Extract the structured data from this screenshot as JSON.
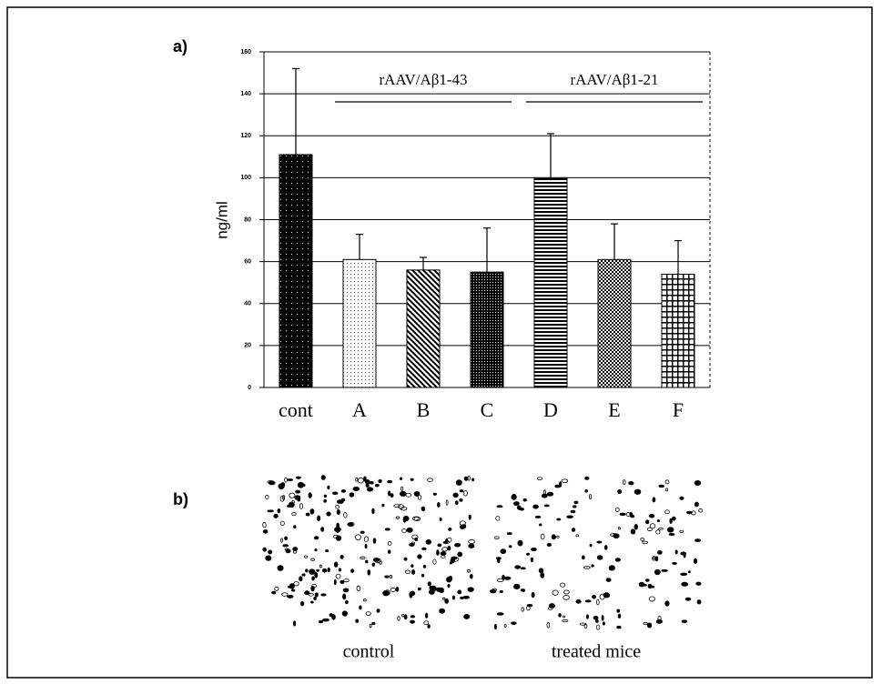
{
  "chart_data": {
    "type": "bar",
    "panel_a_label": "a)",
    "panel_b_label": "b)",
    "ylabel": "ng/ml",
    "categories": [
      "cont",
      "A",
      "B",
      "C",
      "D",
      "E",
      "F"
    ],
    "values": [
      111,
      61,
      56,
      55,
      100,
      61,
      54
    ],
    "errors": [
      41,
      12,
      6,
      21,
      21,
      17,
      16
    ],
    "ylim": [
      0,
      160
    ],
    "yticks": [
      0,
      20,
      40,
      60,
      80,
      100,
      120,
      140,
      160
    ],
    "grid": true,
    "groups": [
      {
        "label": "rAAV/Aβ1-43",
        "from": 1,
        "to": 3
      },
      {
        "label": "rAAV/Aβ1-21",
        "from": 4,
        "to": 6
      }
    ],
    "images": [
      {
        "caption": "control"
      },
      {
        "caption": "treated mice"
      }
    ]
  }
}
